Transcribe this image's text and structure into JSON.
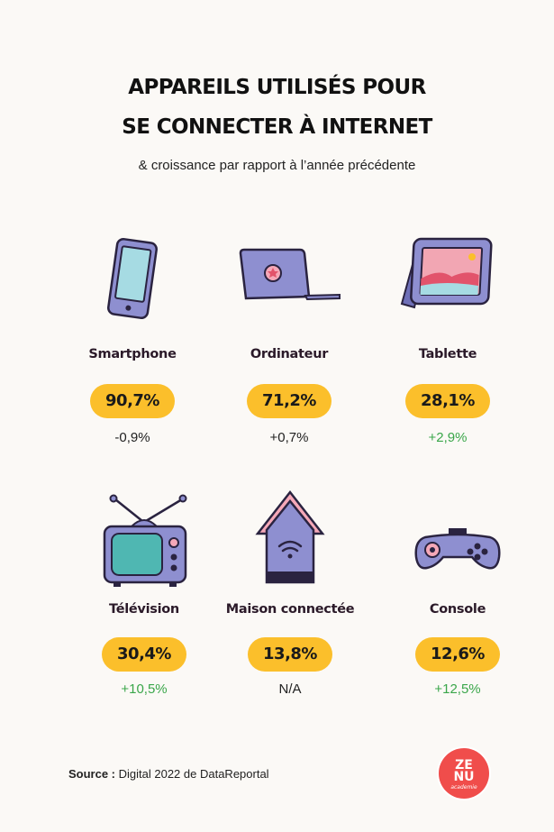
{
  "header": {
    "title_line1": "APPAREILS UTILISÉS POUR",
    "title_line2": "SE CONNECTER À INTERNET",
    "subtitle": "& croissance par rapport à l’année précédente"
  },
  "devices": [
    {
      "label": "Smartphone",
      "value": "90,7%",
      "growth": "-0,9%",
      "icon": "smartphone-icon"
    },
    {
      "label": "Ordinateur",
      "value": "71,2%",
      "growth": "+0,7%",
      "icon": "laptop-icon"
    },
    {
      "label": "Tablette",
      "value": "28,1%",
      "growth": "+2,9%",
      "icon": "tablet-icon"
    },
    {
      "label": "Télévision",
      "value": "30,4%",
      "growth": "+10,5%",
      "icon": "tv-icon"
    },
    {
      "label": "Maison connectée",
      "value": "13,8%",
      "growth": "N/A",
      "icon": "smart-home-icon"
    },
    {
      "label": "Console",
      "value": "12,6%",
      "growth": "+12,5%",
      "icon": "gamepad-icon"
    }
  ],
  "footer": {
    "source_label": "Source :",
    "source_text": " Digital 2022 de DataReportal",
    "logo_line1": "ZE",
    "logo_line2": "NU",
    "logo_line3": "academie"
  },
  "colors": {
    "pill": "#fbbf2b",
    "positive": "#3aa64a",
    "device_body": "#8e8fd0",
    "screen_teal": "#4fb7b2",
    "background": "#fbf9f6"
  }
}
